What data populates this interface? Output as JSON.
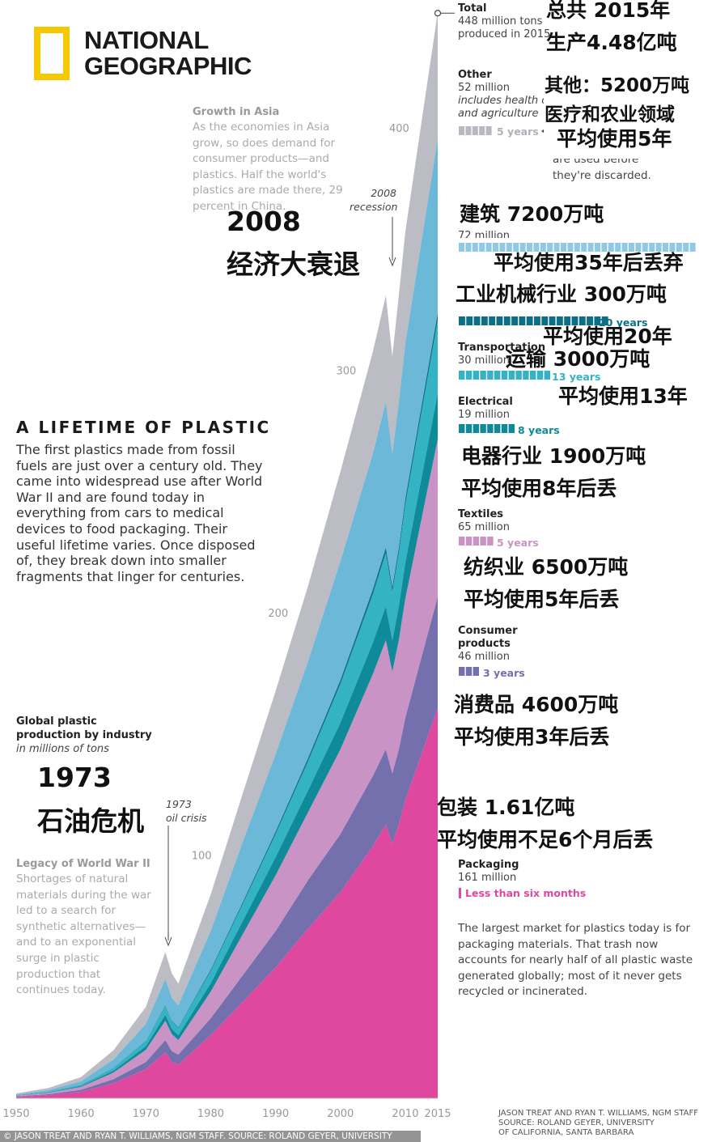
{
  "logo": {
    "line1": "NATIONAL",
    "line2": "GEOGRAPHIC",
    "frame_color": "#f5c800",
    "icon": "yellow-rectangle-icon"
  },
  "main": {
    "title": "A LIFETIME OF PLASTIC",
    "body": "The first plastics made from fossil fuels are just over a century old. They came into widespread use after World War II and are found today in everything from cars to medical devices to food packaging. Their useful lifetime varies. Once disposed of, they break down into smaller fragments that linger for centuries."
  },
  "notes": {
    "asia_title": "Growth in Asia",
    "asia_body": "As the economies in Asia grow, so does demand for consumer products—and plastics. Half the world's plastics are made there, 29 percent in China.",
    "ww2_title": "Legacy of World War II",
    "ww2_body": "Shortages of natural materials during the war led to a search for synthetic alternatives—and to an exponential surge in plastic production that continues today.",
    "packaging_body": "The largest market for plastics today is for packaging materials. That trash now accounts for nearly half of all plastic waste generated globally; most of it never gets recycled or incinerated.",
    "other_hidden": "are used before they're discarded."
  },
  "axis_title": {
    "line1": "Global plastic",
    "line2": "production by industry",
    "unit": "in millions of tons"
  },
  "annotations": {
    "recession_year": "2008",
    "recession_label": "recession",
    "crisis_year": "1973",
    "crisis_label": "oil crisis"
  },
  "total": {
    "name": "Total",
    "line1": "448 million tons",
    "line2": "produced in 2015"
  },
  "industries": {
    "other": {
      "name": "Other",
      "value": "52 million",
      "note1": "includes health care",
      "note2": "and agriculture",
      "years": "5 years"
    },
    "building": {
      "value": "72 million"
    },
    "industrial": {
      "years": "20 years"
    },
    "transportation": {
      "name": "Transportation",
      "value": "30 million",
      "years": "13 years"
    },
    "electrical": {
      "name": "Electrical",
      "value": "19 million",
      "years": "8 years"
    },
    "textiles": {
      "name": "Textiles",
      "value": "65 million",
      "years": "5 years"
    },
    "consumer": {
      "name1": "Consumer",
      "name2": "products",
      "value": "46 million",
      "years": "3 years"
    },
    "packaging": {
      "name": "Packaging",
      "value": "161 million",
      "years": "Less than six months"
    }
  },
  "chinese": {
    "total_1": "总共 2015年",
    "total_2": "生产4.48亿吨",
    "other_1": "其他：5200万吨",
    "other_2": "医疗和农业领域",
    "other_3": "平均使用5年",
    "building_1": "建筑 7200万吨",
    "building_2": "平均使用35年后丢弃",
    "industrial_1": "工业机械行业 300万吨",
    "industrial_2": "平均使用20年",
    "transport_1": "运输 3000万吨",
    "transport_2": "平均使用13年",
    "electrical_1": "电器行业 1900万吨",
    "electrical_2": "平均使用8年后丢",
    "textiles_1": "纺织业 6500万吨",
    "textiles_2": "平均使用5年后丢",
    "consumer_1": "消费品 4600万吨",
    "consumer_2": "平均使用3年后丢",
    "packaging_1": "包装 1.61亿吨",
    "packaging_2": "平均使用不足6个月后丢",
    "recession_1": "2008",
    "recession_2": "经济大衰退",
    "crisis_1": "1973",
    "crisis_2": "石油危机"
  },
  "credits": {
    "right1": "JASON TREAT AND RYAN T. WILLIAMS, NGM STAFF",
    "right2": "SOURCE: ROLAND GEYER, UNIVERSITY",
    "right3": "OF CALIFORNIA, SANTA BARBARA",
    "left": "© JASON TREAT AND RYAN T. WILLIAMS, NGM STAFF. SOURCE: ROLAND GEYER, UNIVERSITY"
  },
  "colors": {
    "packaging": "#e0479e",
    "consumer": "#7470ad",
    "textiles": "#c994c5",
    "electrical": "#0e8a99",
    "transportation": "#34b3c4",
    "industrial": "#0c6f85",
    "building": "#6cb8d8",
    "other": "#bcbcc4"
  },
  "chart_data": {
    "type": "area",
    "stacked": true,
    "title": "A LIFETIME OF PLASTIC",
    "ylabel": "Global plastic production by industry, in millions of tons",
    "xlim": [
      1950,
      2015
    ],
    "ylim": [
      0,
      450
    ],
    "x_ticks": [
      1950,
      1960,
      1970,
      1980,
      1990,
      2000,
      2010,
      2015
    ],
    "y_ticks": [
      100,
      200,
      300,
      400
    ],
    "x": [
      1950,
      1955,
      1960,
      1965,
      1970,
      1973,
      1974,
      1975,
      1980,
      1985,
      1990,
      1995,
      2000,
      2005,
      2007,
      2008,
      2009,
      2010,
      2015
    ],
    "series": [
      {
        "name": "Packaging",
        "values": [
          0.6,
          1.3,
          2.7,
          6.2,
          12,
          19,
          15,
          14,
          26,
          40,
          54,
          70,
          85,
          104,
          113,
          105,
          113,
          123,
          161
        ]
      },
      {
        "name": "Consumer products",
        "values": [
          0.2,
          0.4,
          0.8,
          1.7,
          3,
          5,
          4.5,
          4,
          7,
          11,
          15,
          20,
          24,
          29,
          31,
          29,
          31,
          34,
          46
        ]
      },
      {
        "name": "Textiles",
        "values": [
          0.3,
          0.6,
          1.2,
          2.7,
          5,
          8,
          7,
          6,
          11,
          17,
          23,
          28,
          35,
          42,
          45,
          42,
          45,
          49,
          65
        ]
      },
      {
        "name": "Electrical",
        "values": [
          0.1,
          0.2,
          0.4,
          0.8,
          1.5,
          2.5,
          2.2,
          2,
          3.5,
          5.5,
          7.5,
          9,
          11,
          13,
          14,
          13,
          14,
          15,
          19
        ]
      },
      {
        "name": "Transportation",
        "values": [
          0.1,
          0.2,
          0.5,
          1.1,
          2,
          3.5,
          3,
          3,
          5,
          7,
          9.5,
          12,
          16,
          20,
          22,
          20,
          22,
          24,
          30
        ]
      },
      {
        "name": "Industrial machinery",
        "values": [
          0.02,
          0.04,
          0.06,
          0.1,
          0.2,
          0.3,
          0.3,
          0.3,
          0.6,
          0.8,
          1,
          1.3,
          1.6,
          2,
          2.2,
          2,
          2.2,
          2.4,
          3
        ]
      },
      {
        "name": "Building and construction",
        "values": [
          0.3,
          0.7,
          1.4,
          3.4,
          7,
          11,
          9.5,
          9,
          16,
          25,
          32,
          40,
          49,
          56,
          60,
          55,
          60,
          64,
          72
        ]
      },
      {
        "name": "Other",
        "values": [
          0.4,
          0.8,
          1.7,
          3.8,
          7,
          11,
          10,
          9,
          15,
          20,
          26,
          31,
          37,
          42,
          44,
          40,
          44,
          46,
          52
        ]
      }
    ]
  }
}
